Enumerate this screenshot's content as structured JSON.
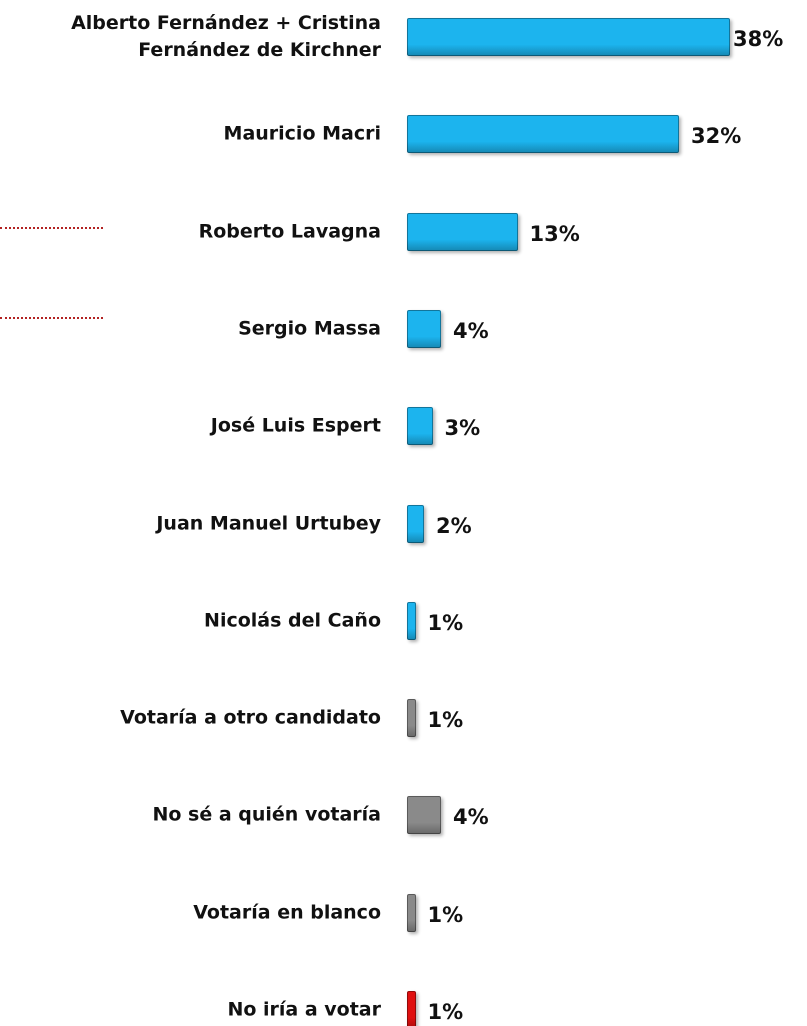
{
  "chart_data": {
    "type": "bar",
    "orientation": "horizontal",
    "categories": [
      "Alberto Fernández + Cristina Fernández de Kirchner",
      "Mauricio Macri",
      "Roberto Lavagna",
      "Sergio Massa",
      "José Luis Espert",
      "Juan Manuel Urtubey",
      "Nicolás del Caño",
      "Votaría a otro candidato",
      "No sé a quién votaría",
      "Votaría en blanco",
      "No iría a votar"
    ],
    "values": [
      38,
      32,
      13,
      4,
      3,
      2,
      1,
      1,
      4,
      1,
      1
    ],
    "value_labels": [
      "38%",
      "32%",
      "13%",
      "4%",
      "3%",
      "2%",
      "1%",
      "1%",
      "4%",
      "1%",
      "1%"
    ],
    "colors": [
      "#1cb4ee",
      "#1cb4ee",
      "#1cb4ee",
      "#1cb4ee",
      "#1cb4ee",
      "#1cb4ee",
      "#1cb4ee",
      "#8a8a8a",
      "#8a8a8a",
      "#8a8a8a",
      "#e01010"
    ]
  }
}
